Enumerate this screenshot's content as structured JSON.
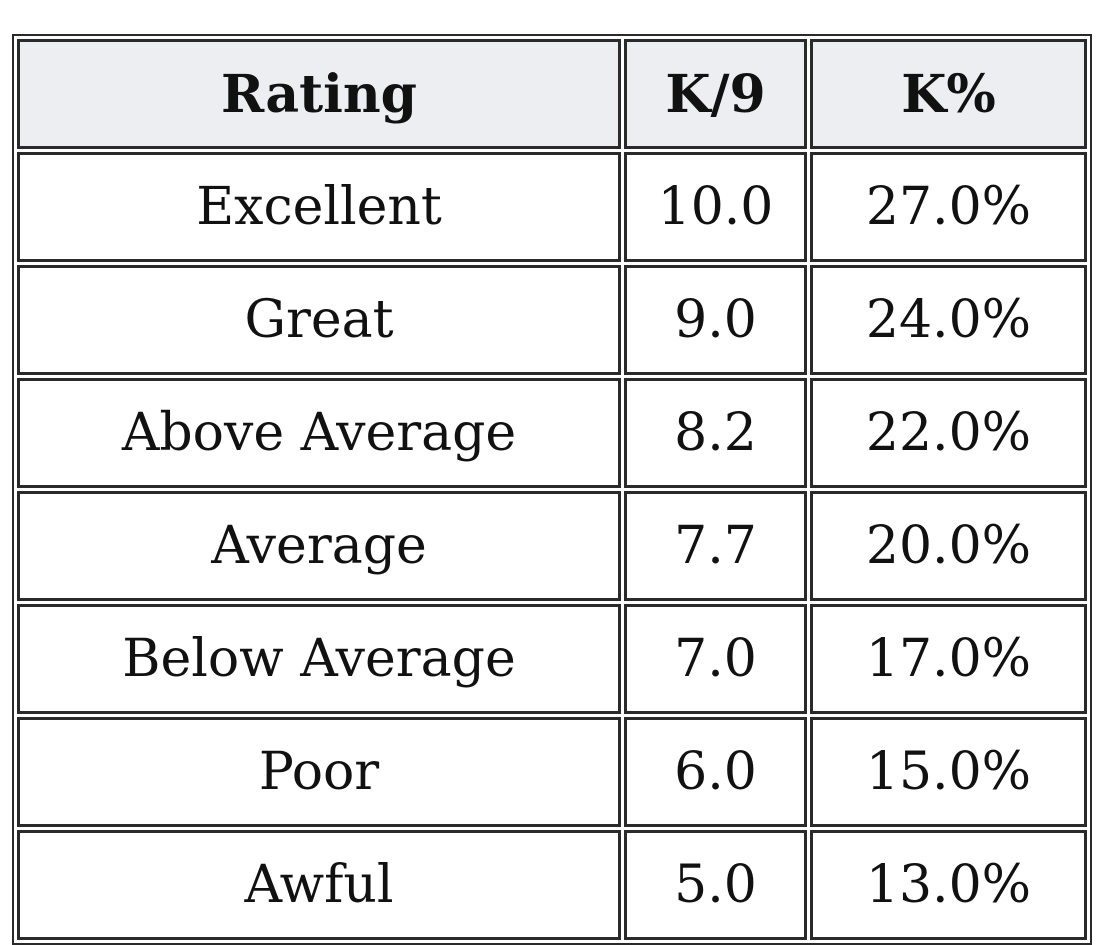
{
  "table": {
    "header": [
      "Rating",
      "K/9",
      "K%"
    ],
    "rows": [
      [
        "Excellent",
        "10.0",
        "27.0%"
      ],
      [
        "Great",
        "9.0",
        "24.0%"
      ],
      [
        "Above Average",
        "8.2",
        "22.0%"
      ],
      [
        "Average",
        "7.7",
        "20.0%"
      ],
      [
        "Below Average",
        "7.0",
        "17.0%"
      ],
      [
        "Poor",
        "6.0",
        "15.0%"
      ],
      [
        "Awful",
        "5.0",
        "13.0%"
      ]
    ]
  }
}
